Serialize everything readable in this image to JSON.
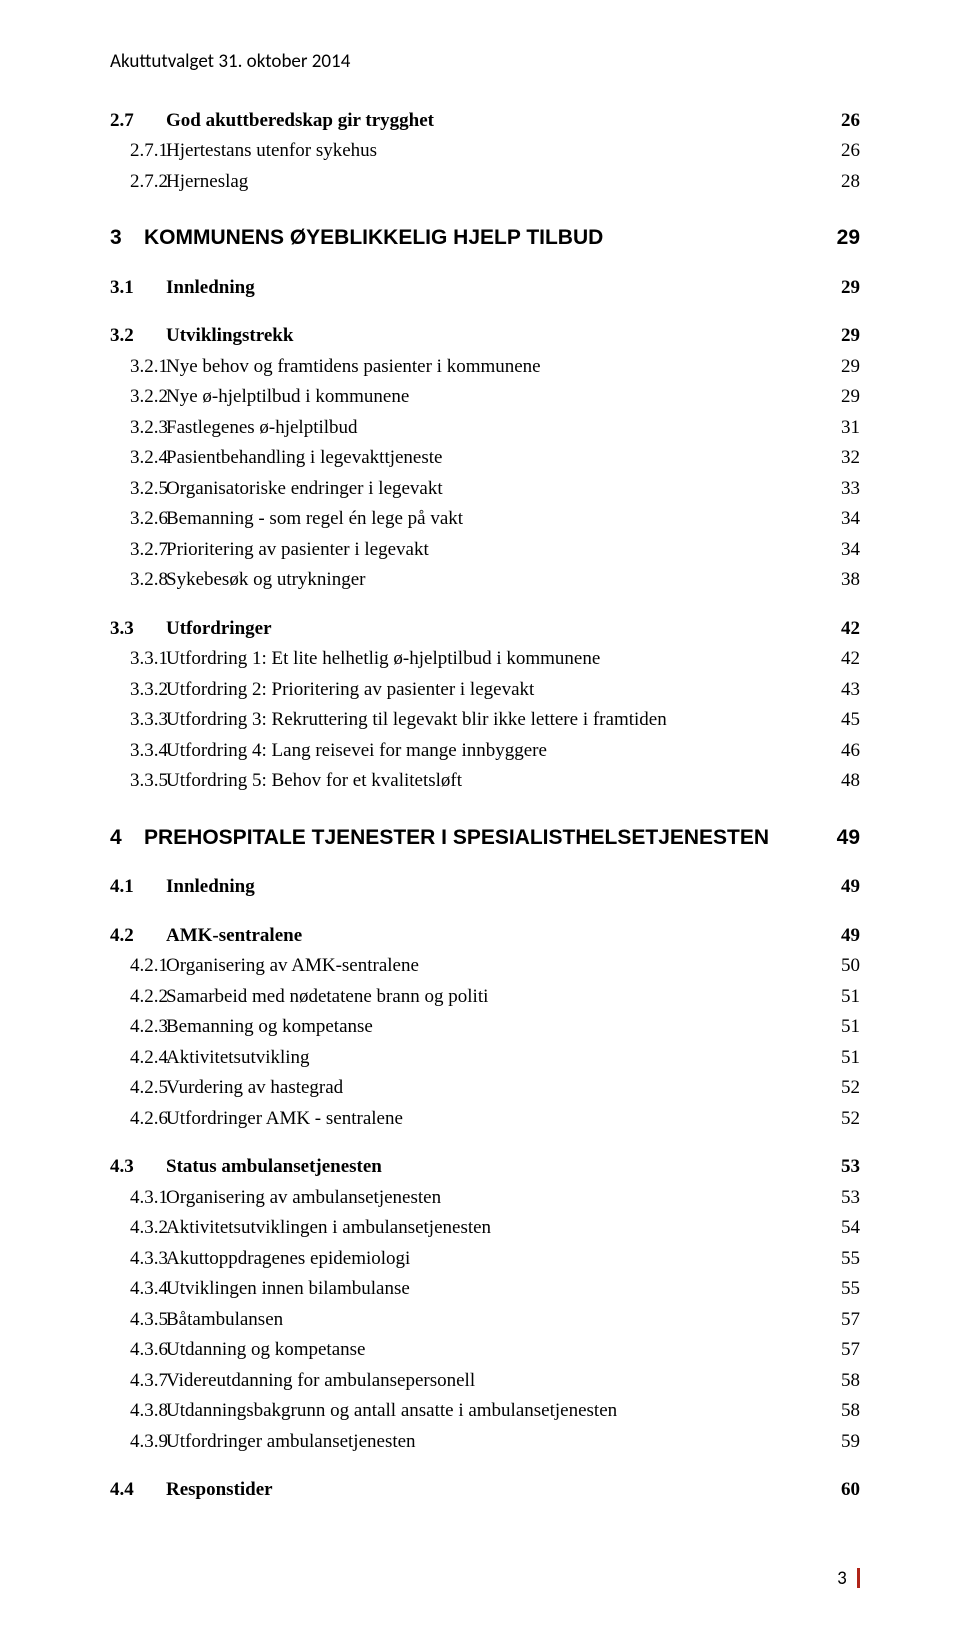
{
  "colors": {
    "text": "#000000",
    "background": "#ffffff",
    "accent_bar": "#b02418"
  },
  "header_text": "Akuttutvalget 31. oktober 2014",
  "toc": [
    {
      "type": "section",
      "num": "2.7",
      "label": "God akuttberedskap gir trygghet",
      "page": "26"
    },
    {
      "type": "sub",
      "num": "2.7.1",
      "label": "Hjertestans utenfor sykehus",
      "page": "26"
    },
    {
      "type": "sub",
      "num": "2.7.2",
      "label": "Hjerneslag",
      "page": "28"
    },
    {
      "type": "chapter",
      "num": "3",
      "label": "KOMMUNENS ØYEBLIKKELIG HJELP TILBUD",
      "page": "29"
    },
    {
      "type": "section",
      "num": "3.1",
      "label": "Innledning",
      "page": "29"
    },
    {
      "type": "section",
      "num": "3.2",
      "label": "Utviklingstrekk",
      "page": "29"
    },
    {
      "type": "sub",
      "num": "3.2.1",
      "label": "Nye behov og framtidens pasienter i kommunene",
      "page": "29"
    },
    {
      "type": "sub",
      "num": "3.2.2",
      "label": "Nye ø-hjelptilbud i kommunene",
      "page": "29"
    },
    {
      "type": "sub",
      "num": "3.2.3",
      "label": "Fastlegenes ø-hjelptilbud",
      "page": "31"
    },
    {
      "type": "sub",
      "num": "3.2.4",
      "label": "Pasientbehandling i legevakttjeneste",
      "page": "32"
    },
    {
      "type": "sub",
      "num": "3.2.5",
      "label": "Organisatoriske endringer i legevakt",
      "page": "33"
    },
    {
      "type": "sub",
      "num": "3.2.6",
      "label": "Bemanning - som regel én lege på vakt",
      "page": "34"
    },
    {
      "type": "sub",
      "num": "3.2.7",
      "label": "Prioritering av pasienter i legevakt",
      "page": "34"
    },
    {
      "type": "sub",
      "num": "3.2.8",
      "label": "Sykebesøk og utrykninger",
      "page": "38"
    },
    {
      "type": "section",
      "num": "3.3",
      "label": "Utfordringer",
      "page": "42"
    },
    {
      "type": "sub",
      "num": "3.3.1",
      "label": "Utfordring 1: Et lite helhetlig ø-hjelptilbud i kommunene",
      "page": "42"
    },
    {
      "type": "sub",
      "num": "3.3.2",
      "label": "Utfordring 2: Prioritering av pasienter i legevakt",
      "page": "43"
    },
    {
      "type": "sub",
      "num": "3.3.3",
      "label": "Utfordring 3: Rekruttering til legevakt blir ikke lettere i framtiden",
      "page": "45"
    },
    {
      "type": "sub",
      "num": "3.3.4",
      "label": "Utfordring 4: Lang reisevei for mange innbyggere",
      "page": "46"
    },
    {
      "type": "sub",
      "num": "3.3.5",
      "label": "Utfordring 5: Behov for et kvalitetsløft",
      "page": "48"
    },
    {
      "type": "chapter",
      "num": "4",
      "label": "PREHOSPITALE TJENESTER I SPESIALISTHELSETJENESTEN",
      "page": "49"
    },
    {
      "type": "section",
      "num": "4.1",
      "label": "Innledning",
      "page": "49"
    },
    {
      "type": "section",
      "num": "4.2",
      "label": "AMK-sentralene",
      "page": "49"
    },
    {
      "type": "sub",
      "num": "4.2.1",
      "label": "Organisering av AMK-sentralene",
      "page": "50"
    },
    {
      "type": "sub",
      "num": "4.2.2",
      "label": "Samarbeid med nødetatene brann og politi",
      "page": "51"
    },
    {
      "type": "sub",
      "num": "4.2.3",
      "label": "Bemanning og kompetanse",
      "page": "51"
    },
    {
      "type": "sub",
      "num": "4.2.4",
      "label": "Aktivitetsutvikling",
      "page": "51"
    },
    {
      "type": "sub",
      "num": "4.2.5",
      "label": "Vurdering av hastegrad",
      "page": "52"
    },
    {
      "type": "sub",
      "num": "4.2.6",
      "label": "Utfordringer AMK - sentralene",
      "page": "52"
    },
    {
      "type": "section",
      "num": "4.3",
      "label": "Status ambulansetjenesten",
      "page": "53"
    },
    {
      "type": "sub",
      "num": "4.3.1",
      "label": "Organisering av ambulansetjenesten",
      "page": "53"
    },
    {
      "type": "sub",
      "num": "4.3.2",
      "label": "Aktivitetsutviklingen i ambulansetjenesten",
      "page": "54"
    },
    {
      "type": "sub",
      "num": "4.3.3",
      "label": "Akuttoppdragenes epidemiologi",
      "page": "55"
    },
    {
      "type": "sub",
      "num": "4.3.4",
      "label": "Utviklingen innen bilambulanse",
      "page": "55"
    },
    {
      "type": "sub",
      "num": "4.3.5",
      "label": "Båtambulansen",
      "page": "57"
    },
    {
      "type": "sub",
      "num": "4.3.6",
      "label": "Utdanning og kompetanse",
      "page": "57"
    },
    {
      "type": "sub",
      "num": "4.3.7",
      "label": "Videreutdanning for ambulansepersonell",
      "page": "58"
    },
    {
      "type": "sub",
      "num": "4.3.8",
      "label": "Utdanningsbakgrunn og antall ansatte i ambulansetjenesten",
      "page": "58"
    },
    {
      "type": "sub",
      "num": "4.3.9",
      "label": "Utfordringer ambulansetjenesten",
      "page": "59"
    },
    {
      "type": "section",
      "num": "4.4",
      "label": "Responstider",
      "page": "60"
    }
  ],
  "footer_page": "3"
}
